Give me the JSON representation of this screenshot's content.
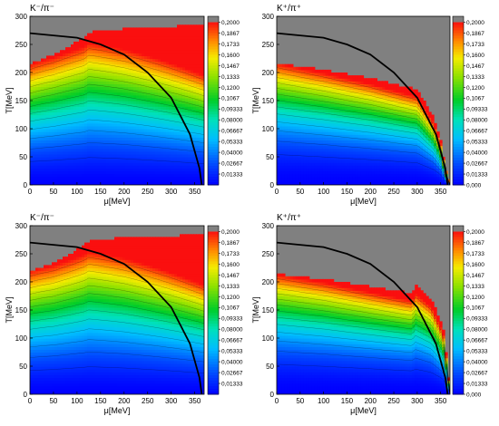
{
  "chart_data": [
    {
      "type": "heatmap",
      "title": "K⁻/π⁻",
      "xlabel": "μ[MeV]",
      "ylabel": "T[MeV]",
      "xlim": [
        0,
        370
      ],
      "ylim": [
        0,
        300
      ],
      "x_ticks": [
        "0",
        "50",
        "100",
        "150",
        "200",
        "250",
        "300",
        "350"
      ],
      "y_ticks": [
        "0",
        "50",
        "100",
        "150",
        "200",
        "250",
        "300"
      ],
      "colorbar_ticks": [
        "0,2000",
        "0,1867",
        "0,1733",
        "0,1600",
        "0,1467",
        "0,1333",
        "0,1200",
        "0,1067",
        "0,09333",
        "0,08000",
        "0,06667",
        "0,05333",
        "0,04000",
        "0,02667",
        "0,01333"
      ],
      "colorbar_range": [
        0,
        0.2
      ],
      "colorbar_top_color": "#808080",
      "model": "antikaon-minus",
      "gray_boundary": [
        [
          0,
          215
        ],
        [
          50,
          232
        ],
        [
          90,
          250
        ],
        [
          115,
          262
        ],
        [
          125,
          272
        ],
        [
          200,
          278
        ],
        [
          300,
          282
        ],
        [
          370,
          285
        ]
      ],
      "freezeout_curve": [
        [
          0,
          270
        ],
        [
          100,
          262
        ],
        [
          150,
          250
        ],
        [
          200,
          232
        ],
        [
          250,
          200
        ],
        [
          300,
          155
        ],
        [
          340,
          90
        ],
        [
          360,
          30
        ],
        [
          365,
          0
        ]
      ]
    },
    {
      "type": "heatmap",
      "title": "K⁺/π⁺",
      "xlabel": "μ[MeV]",
      "ylabel": "T[MeV]",
      "xlim": [
        0,
        370
      ],
      "ylim": [
        0,
        300
      ],
      "x_ticks": [
        "0",
        "50",
        "100",
        "150",
        "200",
        "250",
        "300",
        "350"
      ],
      "y_ticks": [
        "0",
        "50",
        "100",
        "150",
        "200",
        "250",
        "300"
      ],
      "colorbar_ticks": [
        "0,2000",
        "0,1867",
        "0,1733",
        "0,1600",
        "0,1467",
        "0,1333",
        "0,1200",
        "0,1067",
        "0,09333",
        "0,08000",
        "0,06667",
        "0,05333",
        "0,04000",
        "0,02667",
        "0,01333",
        "0,000"
      ],
      "colorbar_range": [
        0,
        0.2
      ],
      "colorbar_top_color": "#808080",
      "model": "kaon-plus",
      "gray_boundary": [
        [
          0,
          217
        ],
        [
          100,
          205
        ],
        [
          200,
          190
        ],
        [
          300,
          170
        ],
        [
          335,
          120
        ],
        [
          350,
          80
        ],
        [
          360,
          30
        ],
        [
          370,
          0
        ]
      ],
      "freezeout_curve": [
        [
          0,
          270
        ],
        [
          100,
          262
        ],
        [
          150,
          250
        ],
        [
          200,
          232
        ],
        [
          250,
          200
        ],
        [
          300,
          155
        ],
        [
          340,
          90
        ],
        [
          360,
          30
        ],
        [
          365,
          0
        ]
      ]
    },
    {
      "type": "heatmap",
      "title": "K⁻/π⁻",
      "xlabel": "μ[MeV]",
      "ylabel": "T[MeV]",
      "xlim": [
        0,
        370
      ],
      "ylim": [
        0,
        300
      ],
      "x_ticks": [
        "0",
        "50",
        "100",
        "150",
        "200",
        "250",
        "300",
        "350"
      ],
      "y_ticks": [
        "0",
        "50",
        "100",
        "150",
        "200",
        "250",
        "300"
      ],
      "colorbar_ticks": [
        "0,2000",
        "0,1867",
        "0,1733",
        "0,1600",
        "0,1467",
        "0,1333",
        "0,1200",
        "0,1067",
        "0,09333",
        "0,08000",
        "0,06667",
        "0,05333",
        "0,04000",
        "0,02667",
        "0,01333"
      ],
      "colorbar_range": [
        0,
        0.2
      ],
      "colorbar_top_color": "#808080",
      "model": "antikaon-minus",
      "gray_boundary": [
        [
          0,
          220
        ],
        [
          50,
          234
        ],
        [
          90,
          252
        ],
        [
          115,
          265
        ],
        [
          125,
          273
        ],
        [
          200,
          279
        ],
        [
          300,
          282
        ],
        [
          370,
          284
        ]
      ],
      "freezeout_curve": [
        [
          0,
          270
        ],
        [
          100,
          262
        ],
        [
          150,
          250
        ],
        [
          200,
          232
        ],
        [
          250,
          200
        ],
        [
          300,
          155
        ],
        [
          340,
          90
        ],
        [
          360,
          30
        ],
        [
          365,
          0
        ]
      ]
    },
    {
      "type": "heatmap",
      "title": "K⁺/π⁺",
      "xlabel": "μ[MeV]",
      "ylabel": "T[MeV]",
      "xlim": [
        0,
        370
      ],
      "ylim": [
        0,
        300
      ],
      "x_ticks": [
        "0",
        "50",
        "100",
        "150",
        "200",
        "250",
        "300",
        "350"
      ],
      "y_ticks": [
        "0",
        "50",
        "100",
        "150",
        "200",
        "250",
        "300"
      ],
      "colorbar_ticks": [
        "0,2000",
        "0,1867",
        "0,1733",
        "0,1600",
        "0,1467",
        "0,1333",
        "0,1200",
        "0,1067",
        "0,09333",
        "0,08000",
        "0,06667",
        "0,05333",
        "0,04000",
        "0,02667",
        "0,01333",
        "0,000"
      ],
      "colorbar_range": [
        0,
        0.2
      ],
      "colorbar_top_color": "#808080",
      "model": "kaon-plus",
      "gray_boundary": [
        [
          0,
          214
        ],
        [
          100,
          205
        ],
        [
          200,
          192
        ],
        [
          290,
          180
        ],
        [
          295,
          195
        ],
        [
          330,
          170
        ],
        [
          355,
          120
        ],
        [
          365,
          50
        ],
        [
          370,
          0
        ]
      ],
      "freezeout_curve": [
        [
          0,
          270
        ],
        [
          100,
          262
        ],
        [
          150,
          250
        ],
        [
          200,
          232
        ],
        [
          250,
          200
        ],
        [
          300,
          155
        ],
        [
          340,
          90
        ],
        [
          360,
          30
        ],
        [
          365,
          0
        ]
      ]
    }
  ]
}
